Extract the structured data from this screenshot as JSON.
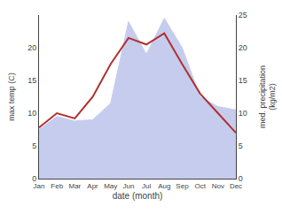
{
  "chart_data": {
    "type": "line",
    "categories": [
      "Jan",
      "Feb",
      "Mar",
      "Apr",
      "May",
      "Jun",
      "Jul",
      "Aug",
      "Sep",
      "Oct",
      "Nov",
      "Dec"
    ],
    "series": [
      {
        "type": "area",
        "axis": "y2",
        "color": "#c5ccee",
        "values": [
          7.5,
          9.5,
          8.8,
          9.0,
          11.5,
          24.0,
          19.0,
          24.5,
          20.0,
          12.5,
          11.0,
          10.5
        ]
      },
      {
        "type": "line",
        "color": "#b03030",
        "values": [
          7.8,
          10.0,
          9.2,
          12.5,
          17.5,
          21.5,
          20.5,
          22.2,
          17.5,
          13.0,
          10.0,
          7.0
        ]
      }
    ],
    "xlabel": "date (month)",
    "ylabel": "max temp (C)",
    "y2label": "med. precipitation\n(kg/m2)",
    "ylim": [
      0,
      25
    ],
    "yticks": [
      0,
      5,
      10,
      15,
      20
    ],
    "y2lim": [
      0,
      25
    ],
    "y2ticks": [
      0,
      5,
      10,
      15,
      20,
      25
    ],
    "grid": false
  }
}
